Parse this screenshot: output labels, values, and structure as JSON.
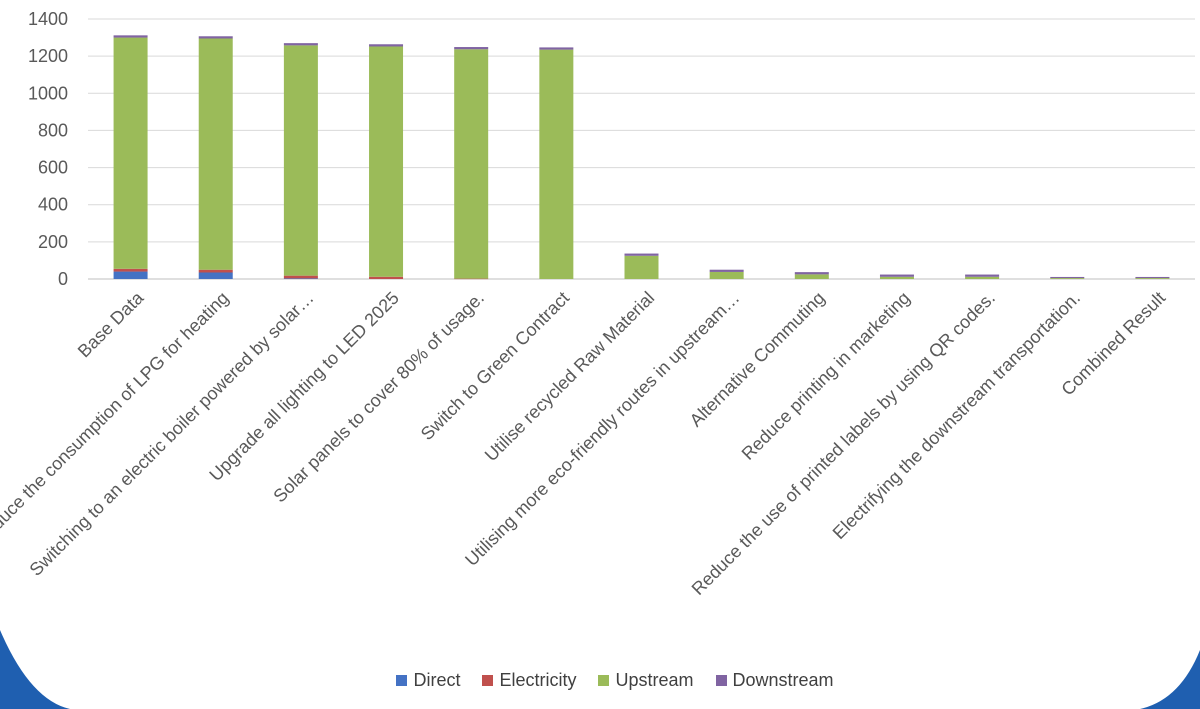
{
  "chart_data": {
    "type": "bar",
    "stacked": true,
    "categories": [
      "Base Data",
      "Reduce the consumption of LPG for heating",
      "Switching to an electric boiler powered by solar…",
      "Upgrade all lighting to LED 2025",
      "Solar panels to cover 80% of usage.",
      "Switch to Green Contract",
      "Utilise recycled Raw Material",
      "Utilising more eco-friendly routes in upstream…",
      "Alternative Commuting",
      "Reduce printing in marketing",
      "Reduce the use of printed labels by using QR codes.",
      "Electrifying the downstream transportation.",
      "Combined Result"
    ],
    "series": [
      {
        "name": "Direct",
        "color": "#4472C4",
        "values": [
          40,
          35,
          3,
          0,
          0,
          0,
          0,
          0,
          0,
          0,
          0,
          0,
          0
        ]
      },
      {
        "name": "Electricity",
        "color": "#C0504D",
        "values": [
          15,
          15,
          15,
          12,
          2,
          0,
          0,
          0,
          0,
          0,
          0,
          0,
          0
        ]
      },
      {
        "name": "Upstream",
        "color": "#9BBB59",
        "values": [
          1245,
          1245,
          1240,
          1240,
          1235,
          1235,
          125,
          38,
          25,
          12,
          12,
          5,
          5
        ]
      },
      {
        "name": "Downstream",
        "color": "#8064A2",
        "values": [
          12,
          12,
          12,
          12,
          12,
          12,
          12,
          12,
          12,
          12,
          12,
          6,
          6
        ]
      }
    ],
    "ylim": [
      0,
      1400
    ],
    "yticks": [
      0,
      200,
      400,
      600,
      800,
      1000,
      1200,
      1400
    ],
    "title": "",
    "xlabel": "",
    "ylabel": "",
    "grid": true,
    "legend_position": "bottom"
  }
}
